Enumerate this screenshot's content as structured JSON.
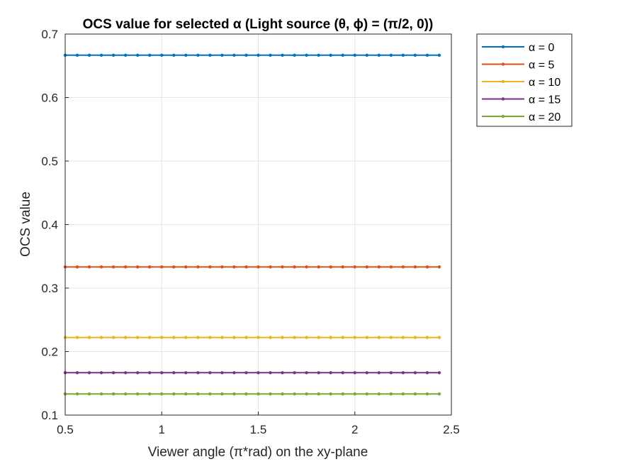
{
  "chart_data": {
    "type": "line",
    "title": "OCS value for selected α (Light source (θ, ϕ) = (π/2, 0))",
    "xlabel": "Viewer angle (π*rad) on the xy-plane",
    "ylabel": "OCS value",
    "xlim": [
      0.5,
      2.5
    ],
    "ylim": [
      0.1,
      0.7
    ],
    "xticks": [
      0.5,
      1,
      1.5,
      2,
      2.5
    ],
    "xtick_labels": [
      "0.5",
      "1",
      "1.5",
      "2",
      "2.5"
    ],
    "yticks": [
      0.1,
      0.2,
      0.3,
      0.4,
      0.5,
      0.6,
      0.7
    ],
    "ytick_labels": [
      "0.1",
      "0.2",
      "0.3",
      "0.4",
      "0.5",
      "0.6",
      "0.7"
    ],
    "grid": true,
    "legend_position": "outside top-right",
    "x": [
      0.5,
      0.5625,
      0.625,
      0.6875,
      0.75,
      0.8125,
      0.875,
      0.9375,
      1.0,
      1.0625,
      1.125,
      1.1875,
      1.25,
      1.3125,
      1.375,
      1.4375,
      1.5,
      1.5625,
      1.625,
      1.6875,
      1.75,
      1.8125,
      1.875,
      1.9375,
      2.0,
      2.0625,
      2.125,
      2.1875,
      2.25,
      2.3125,
      2.375,
      2.4375
    ],
    "series": [
      {
        "name": "α = 0",
        "value": 0.6667,
        "color": "#0072BD"
      },
      {
        "name": "α = 5",
        "value": 0.3333,
        "color": "#D95319"
      },
      {
        "name": "α = 10",
        "value": 0.2222,
        "color": "#EDB120"
      },
      {
        "name": "α = 15",
        "value": 0.1667,
        "color": "#7E2F8E"
      },
      {
        "name": "α = 20",
        "value": 0.1333,
        "color": "#77AC30"
      }
    ]
  }
}
